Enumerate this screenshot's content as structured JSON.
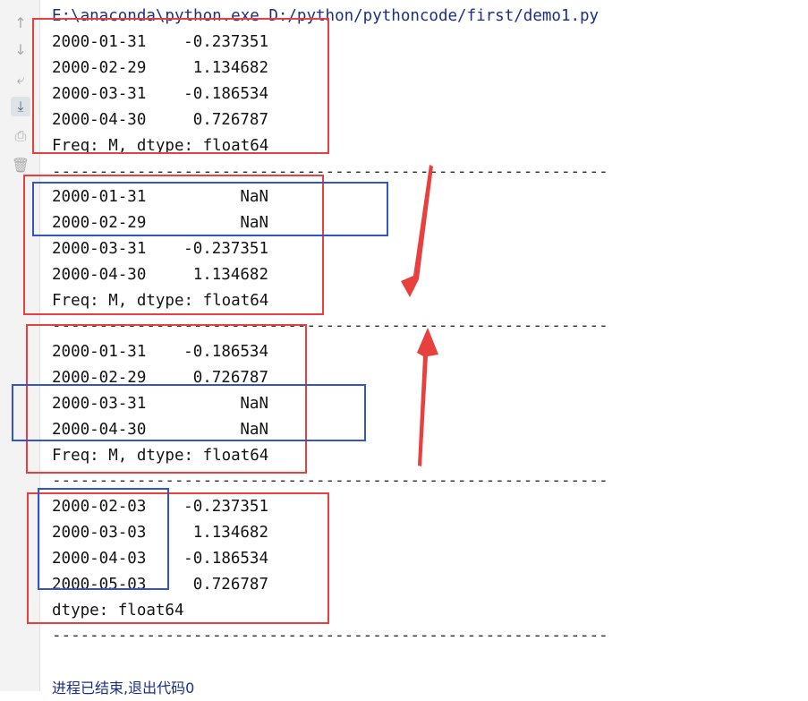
{
  "console": {
    "command": "E:\\anaconda\\python.exe D:/python/pythoncode/first/demo1.py",
    "blocks": [
      {
        "rows": [
          {
            "date": "2000-01-31",
            "value": "-0.237351"
          },
          {
            "date": "2000-02-29",
            "value": "1.134682"
          },
          {
            "date": "2000-03-31",
            "value": "-0.186534"
          },
          {
            "date": "2000-04-30",
            "value": "0.726787"
          }
        ],
        "footer": "Freq: M, dtype: float64"
      },
      {
        "rows": [
          {
            "date": "2000-01-31",
            "value": "NaN"
          },
          {
            "date": "2000-02-29",
            "value": "NaN"
          },
          {
            "date": "2000-03-31",
            "value": "-0.237351"
          },
          {
            "date": "2000-04-30",
            "value": "1.134682"
          }
        ],
        "footer": "Freq: M, dtype: float64"
      },
      {
        "rows": [
          {
            "date": "2000-01-31",
            "value": "-0.186534"
          },
          {
            "date": "2000-02-29",
            "value": "0.726787"
          },
          {
            "date": "2000-03-31",
            "value": "NaN"
          },
          {
            "date": "2000-04-30",
            "value": "NaN"
          }
        ],
        "footer": "Freq: M, dtype: float64"
      },
      {
        "rows": [
          {
            "date": "2000-02-03",
            "value": "-0.237351"
          },
          {
            "date": "2000-03-03",
            "value": "1.134682"
          },
          {
            "date": "2000-04-03",
            "value": "-0.186534"
          },
          {
            "date": "2000-05-03",
            "value": "0.726787"
          }
        ],
        "footer": "dtype: float64"
      }
    ],
    "separator": "-----------------------------------------------------------",
    "exit_message": "进程已结束,退出代码0"
  },
  "toolbar_icons": [
    "up-arrow-icon",
    "down-arrow-icon",
    "soft-wrap-icon",
    "scroll-to-end-icon",
    "print-icon",
    "trash-icon"
  ],
  "colors": {
    "highlight_red": "#e8403f",
    "highlight_blue": "#3355c7",
    "command_text": "#1b2f86"
  }
}
